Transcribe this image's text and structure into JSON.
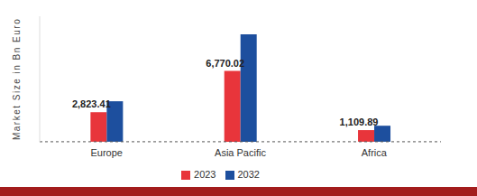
{
  "chart_data": {
    "type": "bar",
    "y_label": "Market Size in Bn Euro",
    "categories": [
      "Europe",
      "Asia Pacific",
      "Africa"
    ],
    "series": [
      {
        "name": "2023",
        "color": "#e8353b",
        "values": [
          2823.41,
          6770.02,
          1109.89
        ],
        "data_labels": true,
        "value_labels": [
          "2,823.41",
          "6,770.02",
          "1,109.89"
        ]
      },
      {
        "name": "2032",
        "color": "#1d4f9e",
        "values": [
          3870,
          10280,
          1530
        ]
      }
    ],
    "ylim": [
      0,
      12000
    ],
    "tick_labels": "x",
    "legend": "bottom",
    "grid": false
  }
}
